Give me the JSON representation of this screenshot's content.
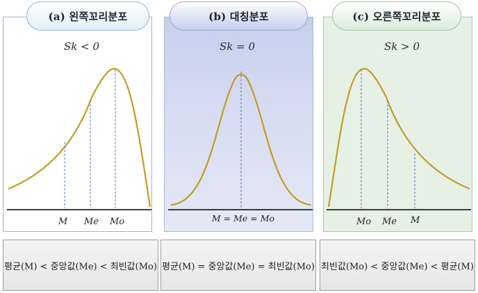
{
  "panels": {
    "left": {
      "title": "(a) 왼쪽꼬리분포",
      "skewness": "Sk < 0",
      "markers": [
        "M",
        "Me",
        "Mo"
      ],
      "relation": "평균(M) < 중앙값(Me) < 최빈값(Mo)"
    },
    "symmetric": {
      "title": "(b) 대칭분포",
      "skewness": "Sk = 0",
      "markers": [
        "M = Me = Mo"
      ],
      "relation": "평균(M) = 중앙값(Me) = 최빈값(Mo)"
    },
    "right": {
      "title": "(c) 오른쪽꼬리분포",
      "skewness": "Sk > 0",
      "markers": [
        "Mo",
        "Me",
        "M"
      ],
      "relation": "최빈값(Mo) < 중앙값(Me) < 평균(M)"
    }
  },
  "colors": {
    "curve": "#c49a22",
    "dashed_line": "#4f6fb0",
    "panel_a_bg": "#ffffff",
    "panel_b_bg": "#d6ddf2",
    "panel_c_bg": "#e6f1e6"
  }
}
